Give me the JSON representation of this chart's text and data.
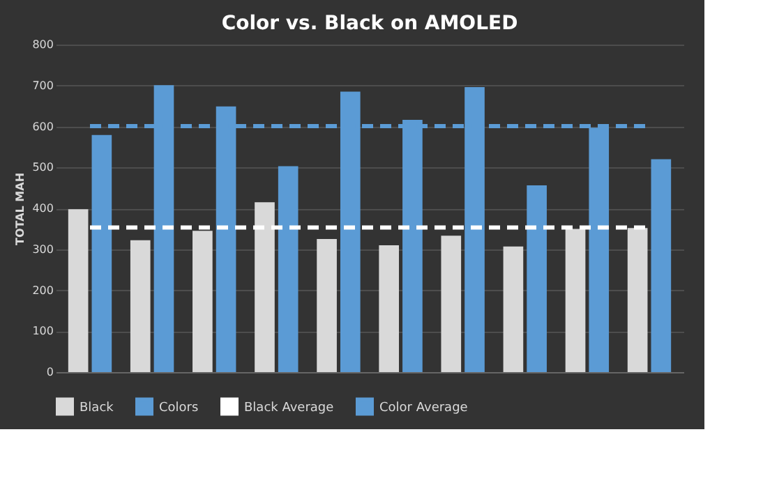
{
  "chart_data": {
    "type": "bar",
    "title": "Color  vs.  Black  on  AMOLED",
    "ylabel": "TOTAL MAH",
    "categories": [
      null,
      null,
      null,
      null,
      null,
      null,
      null,
      null,
      null,
      null
    ],
    "series": [
      {
        "name": "Black",
        "color": "#d9d9d9",
        "values": [
          398,
          322,
          345,
          415,
          325,
          310,
          333,
          307,
          350,
          352
        ]
      },
      {
        "name": "Colors",
        "color": "#5b9bd5",
        "values": [
          579,
          701,
          649,
          503,
          685,
          616,
          696,
          456,
          597,
          520
        ]
      },
      {
        "name": "Black Average",
        "type": "line",
        "line_style": "dashed",
        "color": "#ffffff",
        "values": [
          353,
          353,
          353,
          353,
          353,
          353,
          353,
          353,
          353,
          353
        ]
      },
      {
        "name": "Color Average",
        "type": "line",
        "line_style": "dashed",
        "color": "#5b9bd5",
        "values": [
          601,
          601,
          601,
          601,
          601,
          601,
          601,
          601,
          601,
          601
        ]
      }
    ],
    "ylim": [
      0,
      800
    ],
    "yticks": [
      0,
      100,
      200,
      300,
      400,
      500,
      600,
      700,
      800
    ],
    "grid": "y",
    "legend": "bottom",
    "tick_labels": "y"
  }
}
